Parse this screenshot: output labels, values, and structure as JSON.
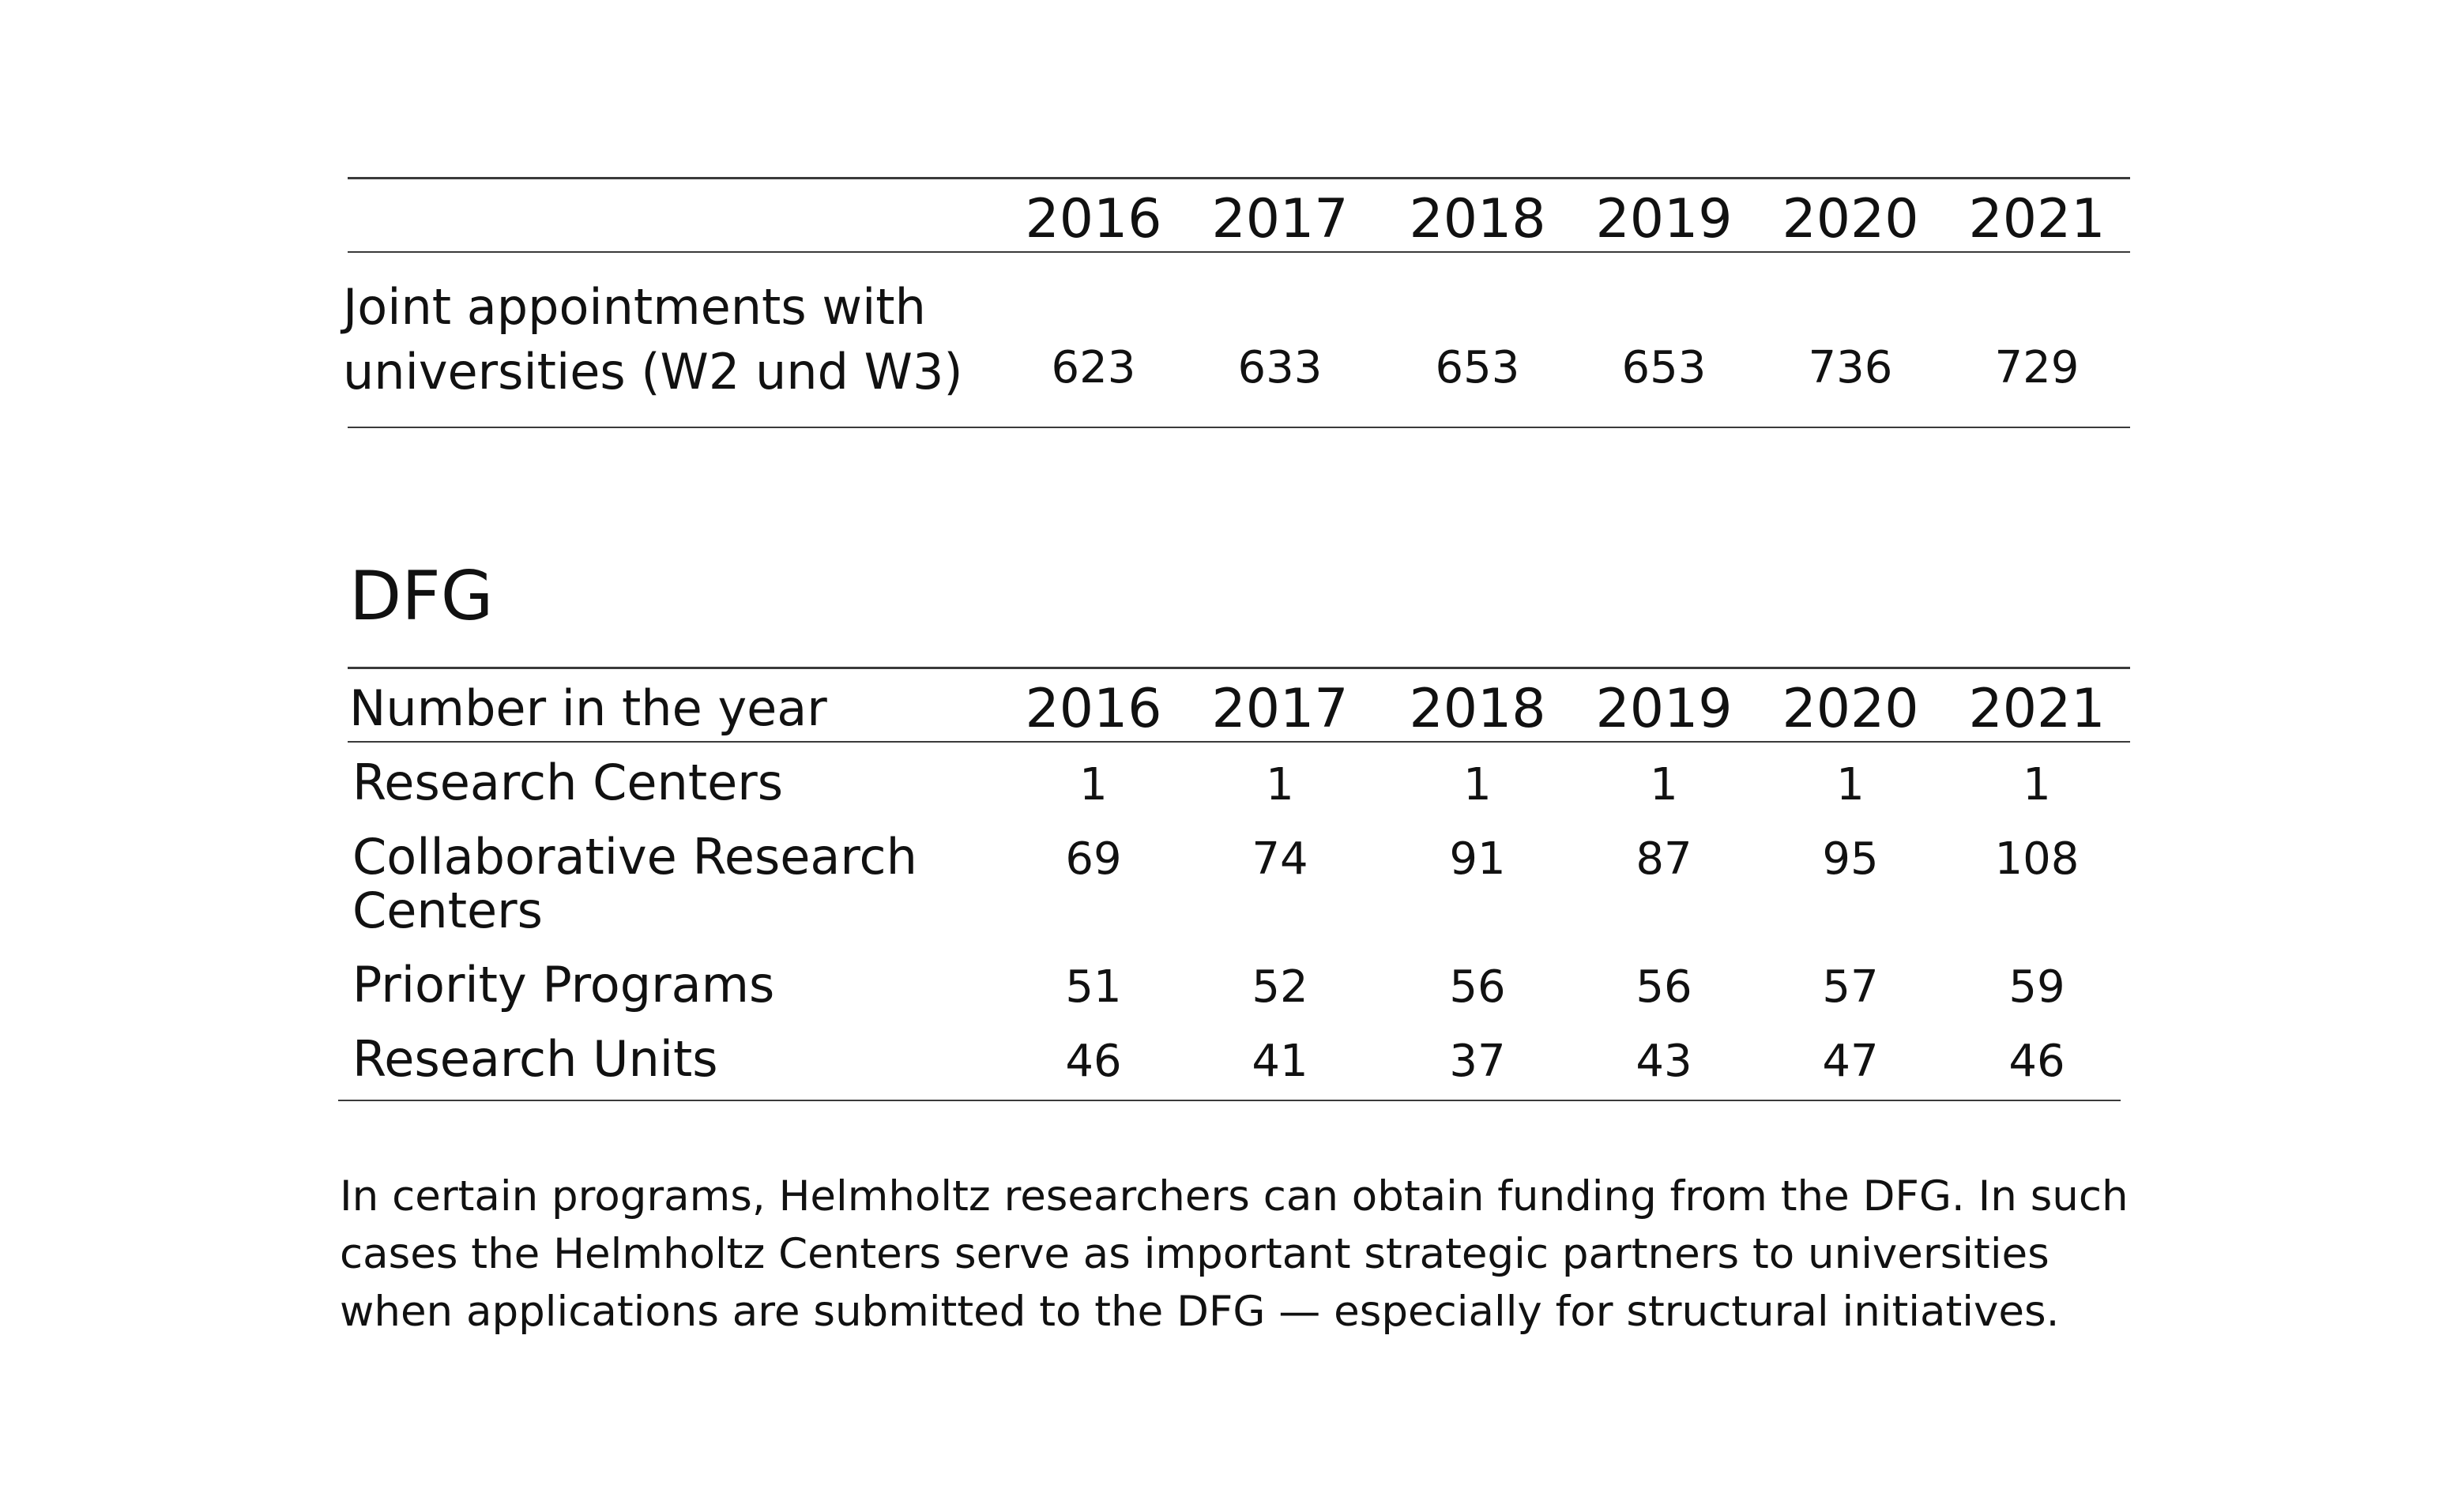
{
  "appointments_table": {
    "years": [
      "2016",
      "2017",
      "2018",
      "2019",
      "2020",
      "2021"
    ],
    "row": {
      "label_lines": [
        "Joint appointments with",
        "universities (W2 und W3)"
      ],
      "values": [
        "623",
        "633",
        "653",
        "653",
        "736",
        "729"
      ]
    }
  },
  "dfg": {
    "title": "DFG",
    "header_label": "Number in the year",
    "years": [
      "2016",
      "2017",
      "2018",
      "2019",
      "2020",
      "2021"
    ],
    "rows": [
      {
        "label_lines": [
          "Research Centers"
        ],
        "values": [
          "1",
          "1",
          "1",
          "1",
          "1",
          "1"
        ]
      },
      {
        "label_lines": [
          "Collaborative Research",
          "Centers"
        ],
        "values": [
          "69",
          "74",
          "91",
          "87",
          "95",
          "108"
        ]
      },
      {
        "label_lines": [
          "Priority Programs"
        ],
        "values": [
          "51",
          "52",
          "56",
          "56",
          "57",
          "59"
        ]
      },
      {
        "label_lines": [
          "Research Units"
        ],
        "values": [
          "46",
          "41",
          "37",
          "43",
          "47",
          "46"
        ]
      }
    ]
  },
  "paragraph": {
    "lines": [
      "In certain programs, Helmholtz researchers can obtain funding from the DFG. In such",
      "cases the Helmholtz Centers serve as important strategic partners to universities",
      "when applications are submitted to the DFG — especially for structural initiatives."
    ]
  }
}
